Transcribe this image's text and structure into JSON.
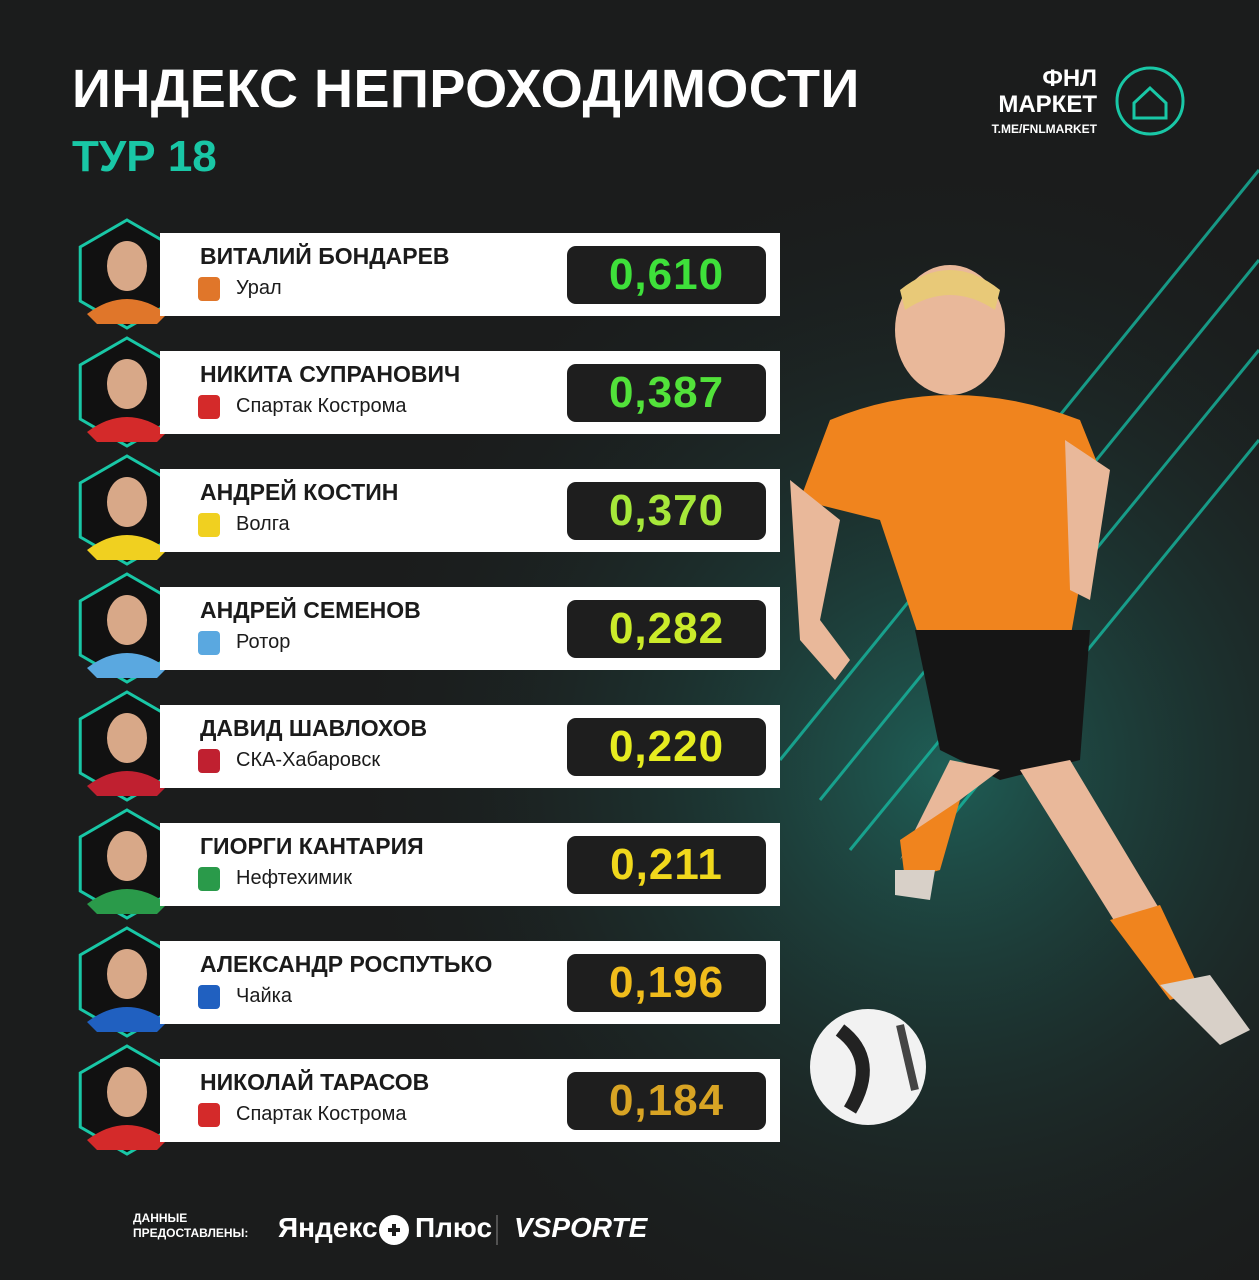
{
  "header": {
    "title": "ИНДЕКС НЕПРОХОДИМОСТИ",
    "subtitle": "ТУР 18"
  },
  "logo": {
    "line1": "ФНЛ",
    "line2": "МАРКЕТ",
    "link": "T.ME/FNLMARKET"
  },
  "rows": [
    {
      "name": "ВИТАЛИЙ БОНДАРЕВ",
      "club": "Урал",
      "score": "0,610",
      "color": "#3ee03a",
      "crest": "#e0762a"
    },
    {
      "name": "НИКИТА СУПРАНОВИЧ",
      "club": "Спартак Кострома",
      "score": "0,387",
      "color": "#52e23a",
      "crest": "#d42a2a"
    },
    {
      "name": "АНДРЕЙ КОСТИН",
      "club": "Волга",
      "score": "0,370",
      "color": "#a6e83a",
      "crest": "#f0d020"
    },
    {
      "name": "АНДРЕЙ СЕМЕНОВ",
      "club": "Ротор",
      "score": "0,282",
      "color": "#cbeb2a",
      "crest": "#5aa8e0"
    },
    {
      "name": "ДАВИД ШАВЛОХОВ",
      "club": "СКА-Хабаровск",
      "score": "0,220",
      "color": "#e6ec20",
      "crest": "#c02030"
    },
    {
      "name": "ГИОРГИ КАНТАРИЯ",
      "club": "Нефтехимик",
      "score": "0,211",
      "color": "#f0d81c",
      "crest": "#2a9a4a"
    },
    {
      "name": "АЛЕКСАНДР РОСПУТЬКО",
      "club": "Чайка",
      "score": "0,196",
      "color": "#f0bc1c",
      "crest": "#2060c0"
    },
    {
      "name": "НИКОЛАЙ ТАРАСОВ",
      "club": "Спартак Кострома",
      "score": "0,184",
      "color": "#d8a424",
      "crest": "#d42a2a"
    }
  ],
  "footer": {
    "source": "ДАННЫЕ ПРЕДОСТАВЛЕНЫ:",
    "partner1": "Яндекс",
    "partner2": "Плюс",
    "partner3": "VSPORTE"
  }
}
